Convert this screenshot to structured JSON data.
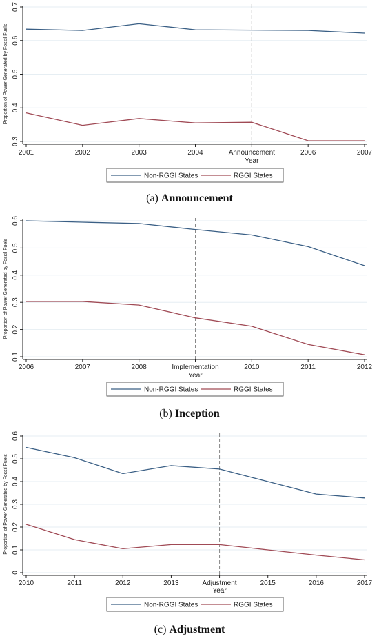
{
  "chart_data": [
    {
      "type": "line",
      "panel_label": "(a)",
      "caption_title": "Announcement",
      "xlabel": "Year",
      "ylabel": "Proportion of Power Generated by Fossil Fuels",
      "categories": [
        "2001",
        "2002",
        "2003",
        "2004",
        "Announcement",
        "2006",
        "2007"
      ],
      "ylim": [
        0.3,
        0.7
      ],
      "yticks": [
        0.3,
        0.4,
        0.5,
        0.6,
        0.7
      ],
      "event_index": 4,
      "series": [
        {
          "name": "Non-RGGI States",
          "color": "#3a5f85",
          "values": [
            0.634,
            0.63,
            0.65,
            0.632,
            0.631,
            0.63,
            0.622
          ]
        },
        {
          "name": "RGGI States",
          "color": "#a04a55",
          "values": [
            0.385,
            0.348,
            0.368,
            0.355,
            0.357,
            0.302,
            0.302
          ]
        }
      ]
    },
    {
      "type": "line",
      "panel_label": "(b)",
      "caption_title": "Inception",
      "xlabel": "Year",
      "ylabel": "Proportion of Power Generated by Fossil Fuels",
      "categories": [
        "2006",
        "2007",
        "2008",
        "Implementation",
        "2010",
        "2011",
        "2012"
      ],
      "ylim": [
        0.1,
        0.6
      ],
      "yticks": [
        0.1,
        0.2,
        0.3,
        0.4,
        0.5,
        0.6
      ],
      "event_index": 3,
      "series": [
        {
          "name": "Non-RGGI States",
          "color": "#3a5f85",
          "values": [
            0.6,
            0.595,
            0.59,
            0.568,
            0.548,
            0.505,
            0.435
          ]
        },
        {
          "name": "RGGI States",
          "color": "#a04a55",
          "values": [
            0.303,
            0.303,
            0.29,
            0.243,
            0.212,
            0.145,
            0.107
          ]
        }
      ]
    },
    {
      "type": "line",
      "panel_label": "(c)",
      "caption_title": "Adjustment",
      "xlabel": "Year",
      "ylabel": "Proportion of Power Generated by Fossil Fuels",
      "categories": [
        "2010",
        "2011",
        "2012",
        "2013",
        "Adjustment",
        "2015",
        "2016",
        "2017"
      ],
      "ylim": [
        0,
        0.6
      ],
      "yticks": [
        0,
        0.1,
        0.2,
        0.3,
        0.4,
        0.5,
        0.6
      ],
      "event_index": 4,
      "series": [
        {
          "name": "Non-RGGI States",
          "color": "#3a5f85",
          "values": [
            0.55,
            0.505,
            0.435,
            0.47,
            0.455,
            0.4,
            0.345,
            0.328
          ]
        },
        {
          "name": "RGGI States",
          "color": "#a04a55",
          "values": [
            0.212,
            0.145,
            0.105,
            0.123,
            0.123,
            0.1,
            0.077,
            0.056
          ]
        }
      ]
    }
  ]
}
